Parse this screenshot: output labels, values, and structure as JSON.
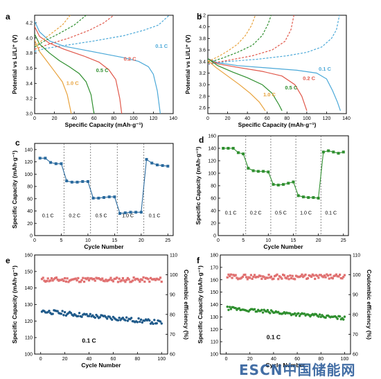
{
  "watermark": "ESCN",
  "watermark_cn": "中国储能网",
  "chart_data": [
    {
      "panel": "a",
      "type": "line",
      "xlabel": "Specific Capacity (mAh·g⁻¹)",
      "ylabel": "Potential vs Li/Li⁺ (V)",
      "xlim": [
        0,
        140
      ],
      "ylim": [
        3.0,
        4.3
      ],
      "xticks": [
        0,
        20,
        40,
        60,
        80,
        100,
        120,
        140
      ],
      "yticks": [
        3.0,
        3.2,
        3.4,
        3.6,
        3.8,
        4.0,
        4.2
      ],
      "series": [
        {
          "name": "0.1 C",
          "color": "#4aa8d8",
          "dashed": false,
          "points": [
            [
              0,
              4.22
            ],
            [
              5,
              4.08
            ],
            [
              15,
              3.96
            ],
            [
              30,
              3.89
            ],
            [
              50,
              3.84
            ],
            [
              70,
              3.79
            ],
            [
              90,
              3.74
            ],
            [
              105,
              3.69
            ],
            [
              115,
              3.62
            ],
            [
              120,
              3.52
            ],
            [
              124,
              3.3
            ],
            [
              127,
              3.0
            ]
          ]
        },
        {
          "name": "0.1 C",
          "color": "#4aa8d8",
          "dashed": true,
          "points": [
            [
              0,
              3.82
            ],
            [
              10,
              3.86
            ],
            [
              30,
              3.9
            ],
            [
              60,
              3.96
            ],
            [
              90,
              4.03
            ],
            [
              110,
              4.1
            ],
            [
              125,
              4.17
            ],
            [
              136,
              4.3
            ]
          ]
        },
        {
          "name": "0.2 C",
          "color": "#e0574a",
          "dashed": false,
          "points": [
            [
              0,
              4.15
            ],
            [
              5,
              4.02
            ],
            [
              15,
              3.93
            ],
            [
              30,
              3.85
            ],
            [
              50,
              3.76
            ],
            [
              65,
              3.68
            ],
            [
              75,
              3.58
            ],
            [
              82,
              3.45
            ],
            [
              86,
              3.2
            ],
            [
              88,
              3.0
            ]
          ]
        },
        {
          "name": "0.2 C",
          "color": "#e0574a",
          "dashed": true,
          "points": [
            [
              0,
              3.85
            ],
            [
              15,
              3.92
            ],
            [
              35,
              4.0
            ],
            [
              55,
              4.1
            ],
            [
              70,
              4.2
            ],
            [
              80,
              4.3
            ]
          ]
        },
        {
          "name": "0.5 C",
          "color": "#2f8f2f",
          "dashed": false,
          "points": [
            [
              0,
              4.05
            ],
            [
              5,
              3.92
            ],
            [
              15,
              3.8
            ],
            [
              25,
              3.7
            ],
            [
              35,
              3.62
            ],
            [
              45,
              3.53
            ],
            [
              52,
              3.42
            ],
            [
              57,
              3.25
            ],
            [
              60,
              3.0
            ]
          ]
        },
        {
          "name": "0.5 C",
          "color": "#2f8f2f",
          "dashed": true,
          "points": [
            [
              0,
              3.88
            ],
            [
              10,
              3.96
            ],
            [
              25,
              4.06
            ],
            [
              40,
              4.17
            ],
            [
              52,
              4.3
            ]
          ]
        },
        {
          "name": "1.0 C",
          "color": "#e8a23c",
          "dashed": false,
          "points": [
            [
              0,
              3.97
            ],
            [
              5,
              3.82
            ],
            [
              12,
              3.7
            ],
            [
              20,
              3.56
            ],
            [
              28,
              3.42
            ],
            [
              33,
              3.25
            ],
            [
              37,
              3.0
            ]
          ]
        },
        {
          "name": "1.0 C",
          "color": "#e8a23c",
          "dashed": true,
          "points": [
            [
              0,
              3.9
            ],
            [
              8,
              3.97
            ],
            [
              18,
              4.07
            ],
            [
              28,
              4.17
            ],
            [
              36,
              4.3
            ]
          ]
        }
      ],
      "labels": [
        {
          "text": "0.1 C",
          "color": "#4aa8d8",
          "x": 122,
          "y": 3.87
        },
        {
          "text": "0.2 C",
          "color": "#e0574a",
          "x": 90,
          "y": 3.7
        },
        {
          "text": "0.5 C",
          "color": "#2f8f2f",
          "x": 62,
          "y": 3.55
        },
        {
          "text": "1.0 C",
          "color": "#e8a23c",
          "x": 32,
          "y": 3.38
        }
      ]
    },
    {
      "panel": "b",
      "type": "line",
      "xlabel": "Specific Capacity (mAh·g⁻¹)",
      "ylabel": "Potential vs Li/Li⁺ (V)",
      "xlim": [
        0,
        140
      ],
      "ylim": [
        2.5,
        4.2
      ],
      "xticks": [
        0,
        20,
        40,
        60,
        80,
        100,
        120,
        140
      ],
      "yticks": [
        2.6,
        2.8,
        3.0,
        3.2,
        3.4,
        3.6,
        3.8,
        4.0,
        4.2
      ],
      "series": [
        {
          "name": "0.1 C",
          "color": "#4aa8d8",
          "dashed": false,
          "points": [
            [
              0,
              3.45
            ],
            [
              10,
              3.38
            ],
            [
              30,
              3.33
            ],
            [
              60,
              3.29
            ],
            [
              90,
              3.25
            ],
            [
              110,
              3.2
            ],
            [
              120,
              3.1
            ],
            [
              126,
              2.9
            ],
            [
              131,
              2.7
            ],
            [
              134,
              2.55
            ]
          ]
        },
        {
          "name": "0.1 C",
          "color": "#4aa8d8",
          "dashed": true,
          "points": [
            [
              0,
              3.35
            ],
            [
              20,
              3.4
            ],
            [
              50,
              3.44
            ],
            [
              80,
              3.5
            ],
            [
              100,
              3.56
            ],
            [
              115,
              3.65
            ],
            [
              125,
              3.8
            ],
            [
              130,
              3.95
            ],
            [
              133,
              4.2
            ]
          ]
        },
        {
          "name": "0.2 C",
          "color": "#e0574a",
          "dashed": false,
          "points": [
            [
              0,
              3.45
            ],
            [
              10,
              3.36
            ],
            [
              30,
              3.3
            ],
            [
              55,
              3.23
            ],
            [
              75,
              3.15
            ],
            [
              88,
              3.0
            ],
            [
              95,
              2.8
            ],
            [
              100,
              2.55
            ]
          ]
        },
        {
          "name": "0.2 C",
          "color": "#e0574a",
          "dashed": true,
          "points": [
            [
              0,
              3.36
            ],
            [
              20,
              3.42
            ],
            [
              45,
              3.5
            ],
            [
              65,
              3.6
            ],
            [
              78,
              3.75
            ],
            [
              84,
              3.95
            ],
            [
              87,
              4.2
            ]
          ]
        },
        {
          "name": "0.5 C",
          "color": "#2f8f2f",
          "dashed": false,
          "points": [
            [
              0,
              3.45
            ],
            [
              10,
              3.33
            ],
            [
              25,
              3.22
            ],
            [
              40,
              3.12
            ],
            [
              55,
              3.0
            ],
            [
              65,
              2.85
            ],
            [
              72,
              2.65
            ],
            [
              75,
              2.55
            ]
          ]
        },
        {
          "name": "0.5 C",
          "color": "#2f8f2f",
          "dashed": true,
          "points": [
            [
              0,
              3.38
            ],
            [
              15,
              3.46
            ],
            [
              30,
              3.56
            ],
            [
              45,
              3.68
            ],
            [
              55,
              3.85
            ],
            [
              61,
              4.05
            ],
            [
              64,
              4.2
            ]
          ]
        },
        {
          "name": "1.0 C",
          "color": "#e8a23c",
          "dashed": false,
          "points": [
            [
              0,
              3.42
            ],
            [
              8,
              3.3
            ],
            [
              20,
              3.15
            ],
            [
              32,
              3.0
            ],
            [
              43,
              2.85
            ],
            [
              52,
              2.7
            ],
            [
              58,
              2.55
            ]
          ]
        },
        {
          "name": "1.0 C",
          "color": "#e8a23c",
          "dashed": true,
          "points": [
            [
              0,
              3.4
            ],
            [
              10,
              3.48
            ],
            [
              20,
              3.58
            ],
            [
              30,
              3.7
            ],
            [
              38,
              3.85
            ],
            [
              44,
              4.02
            ],
            [
              48,
              4.2
            ]
          ]
        }
      ],
      "labels": [
        {
          "text": "0.1 C",
          "color": "#4aa8d8",
          "x": 112,
          "y": 3.24
        },
        {
          "text": "0.2 C",
          "color": "#e0574a",
          "x": 96,
          "y": 3.08
        },
        {
          "text": "0.5 C",
          "color": "#2f8f2f",
          "x": 78,
          "y": 2.92
        },
        {
          "text": "1.0 C",
          "color": "#e8a23c",
          "x": 56,
          "y": 2.8
        }
      ]
    },
    {
      "panel": "c",
      "type": "line",
      "color": "#2a6a9e",
      "xlabel": "Cycle Number",
      "ylabel": "Specific Capacity (mAh·g⁻¹)",
      "xlim": [
        0,
        26
      ],
      "ylim": [
        0,
        150
      ],
      "xticks": [
        0,
        5,
        10,
        15,
        20,
        25
      ],
      "yticks": [
        0,
        20,
        40,
        60,
        80,
        100,
        120,
        140
      ],
      "x": [
        1,
        2,
        3,
        4,
        5,
        6,
        7,
        8,
        9,
        10,
        11,
        12,
        13,
        14,
        15,
        16,
        17,
        18,
        19,
        20,
        21,
        22,
        23,
        24,
        25
      ],
      "y": [
        126,
        126,
        119,
        117,
        117,
        89,
        87,
        87,
        88,
        88,
        61,
        61,
        62,
        63,
        63,
        36,
        37,
        38,
        38,
        38,
        124,
        118,
        115,
        114,
        113
      ],
      "dividers": [
        5,
        10,
        15,
        20
      ],
      "rate_labels": [
        {
          "text": "0.1 C",
          "x": 2.5,
          "y": 30
        },
        {
          "text": "0.2 C",
          "x": 7.5,
          "y": 30
        },
        {
          "text": "0.5 C",
          "x": 12.5,
          "y": 30
        },
        {
          "text": "1.0 C",
          "x": 17.5,
          "y": 30
        },
        {
          "text": "0.1 C",
          "x": 22.5,
          "y": 30
        }
      ]
    },
    {
      "panel": "d",
      "type": "line",
      "color": "#2f8f2f",
      "xlabel": "Cycle Number",
      "ylabel": "Specific Capacity (mAh·g⁻¹)",
      "xlim": [
        0,
        26
      ],
      "ylim": [
        0,
        160
      ],
      "xticks": [
        0,
        5,
        10,
        15,
        20,
        25
      ],
      "yticks": [
        0,
        20,
        40,
        60,
        80,
        100,
        120,
        140,
        160
      ],
      "x": [
        1,
        2,
        3,
        4,
        5,
        6,
        7,
        8,
        9,
        10,
        11,
        12,
        13,
        14,
        15,
        16,
        17,
        18,
        19,
        20,
        21,
        22,
        23,
        24,
        25
      ],
      "y": [
        140,
        140,
        140,
        133,
        131,
        108,
        104,
        103,
        103,
        102,
        82,
        81,
        82,
        84,
        86,
        64,
        62,
        61,
        61,
        60,
        134,
        136,
        134,
        132,
        134
      ],
      "dividers": [
        5,
        10,
        15,
        20
      ],
      "rate_labels": [
        {
          "text": "0.1 C",
          "x": 2.5,
          "y": 34
        },
        {
          "text": "0.2 C",
          "x": 7.5,
          "y": 34
        },
        {
          "text": "0.5 C",
          "x": 12.5,
          "y": 34
        },
        {
          "text": "1.0 C",
          "x": 17.5,
          "y": 34
        },
        {
          "text": "0.1 C",
          "x": 22.5,
          "y": 34
        }
      ]
    },
    {
      "panel": "e",
      "type": "scatter",
      "xlabel": "Cycle Number",
      "ylabel": "Specific Capacity (mAh·g⁻¹)",
      "y2label": "Coulombic efficiency (%)",
      "xlim": [
        -5,
        105
      ],
      "ylim": [
        100,
        160
      ],
      "y2lim": [
        60,
        110
      ],
      "xticks": [
        0,
        20,
        40,
        60,
        80,
        100
      ],
      "yticks": [
        100,
        110,
        120,
        130,
        140,
        150,
        160
      ],
      "y2ticks": [
        60,
        70,
        80,
        90,
        100,
        110
      ],
      "annotation": "0.1 C",
      "capacity": {
        "color": "#1f5a8a",
        "start": 126,
        "end": 119
      },
      "efficiency": {
        "color": "#e07070",
        "start": 97.5,
        "end": 97.5
      }
    },
    {
      "panel": "f",
      "type": "scatter",
      "xlabel": "Cycle Number",
      "ylabel": "Specific Capacity (mAh·g⁻¹)",
      "y2label": "Coulombic efficiency (%)",
      "xlim": [
        -5,
        105
      ],
      "ylim": [
        100,
        180
      ],
      "y2lim": [
        60,
        110
      ],
      "xticks": [
        0,
        20,
        40,
        60,
        80,
        100
      ],
      "yticks": [
        100,
        110,
        120,
        130,
        140,
        150,
        160,
        170,
        180
      ],
      "y2ticks": [
        60,
        70,
        80,
        90,
        100,
        110
      ],
      "annotation": "0.1 C",
      "capacity": {
        "color": "#2f8f2f",
        "start": 137,
        "end": 129
      },
      "efficiency": {
        "color": "#e07070",
        "start": 99,
        "end": 99
      }
    }
  ]
}
